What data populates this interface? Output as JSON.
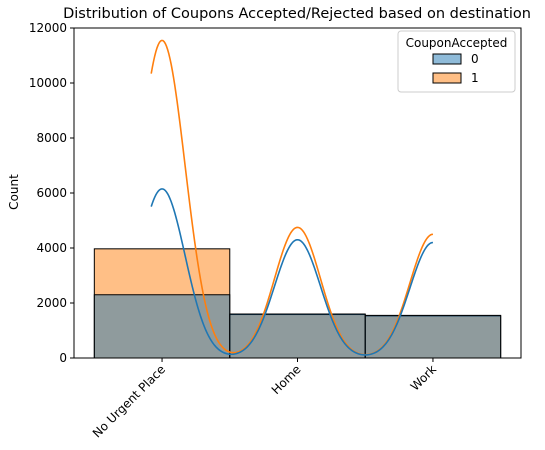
{
  "chart_data": {
    "type": "bar",
    "title": "Distribution of Coupons Accepted/Rejected based on destination",
    "xlabel": "",
    "ylabel": "Count",
    "categories": [
      "No Urgent Place",
      "Home",
      "Work"
    ],
    "ylim": [
      0,
      12000
    ],
    "yticks": [
      0,
      2000,
      4000,
      6000,
      8000,
      10000,
      12000
    ],
    "stacking": "layered",
    "legend": {
      "title": "CouponAccepted",
      "placement": "top-right"
    },
    "series": [
      {
        "name": "0",
        "values": [
          2300,
          1600,
          1550
        ],
        "color": "#1f77b4",
        "kde_peaks": [
          6150,
          4300,
          4200
        ]
      },
      {
        "name": "1",
        "values": [
          3970,
          1580,
          1530
        ],
        "color": "#ff7f0e",
        "kde_peaks": [
          11550,
          4750,
          4500
        ]
      }
    ],
    "kde_min_x": 0.5,
    "grid": false
  }
}
